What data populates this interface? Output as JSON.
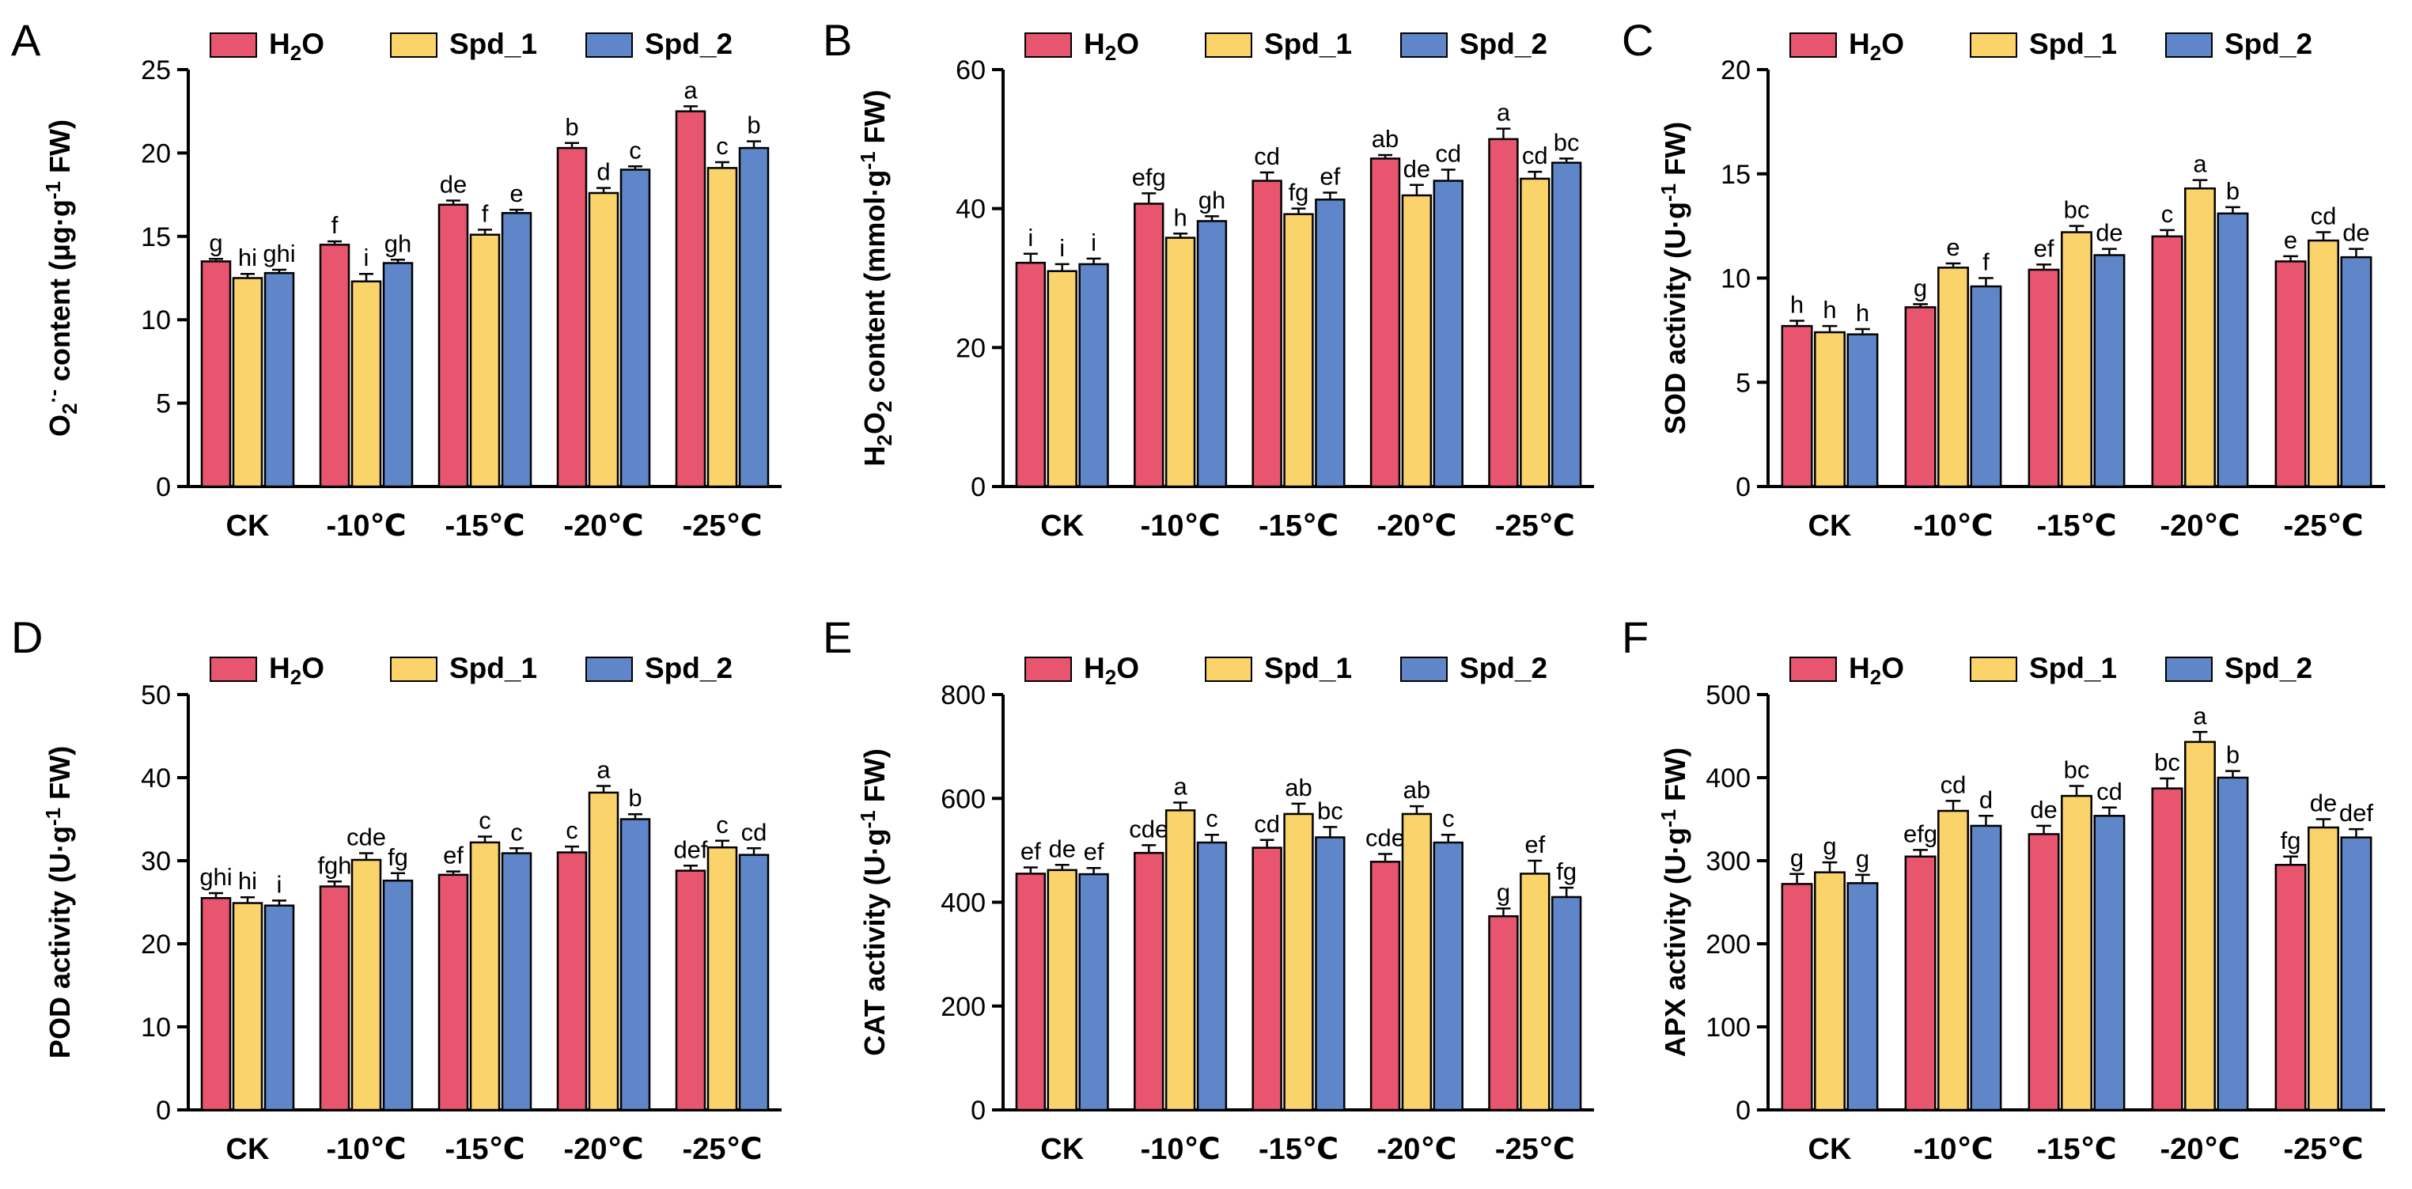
{
  "colors": {
    "H2O": "#E8556F",
    "Spd_1": "#FBD36B",
    "Spd_2": "#5E86C8",
    "axis": "#000000"
  },
  "chart_data": [
    {
      "type": "bar",
      "panel": "A",
      "ylabel": "O2·⁻ content (μg·g⁻¹ FW)",
      "ylim": [
        0,
        25
      ],
      "yticks": [
        "0",
        "5",
        "10",
        "15",
        "20",
        "25"
      ],
      "categories": [
        "CK",
        "-10℃",
        "-15℃",
        "-20℃",
        "-25℃"
      ],
      "legend": [
        "H2O",
        "Spd_1",
        "Spd_2"
      ],
      "series": [
        {
          "name": "H2O",
          "values": [
            13.5,
            14.5,
            16.9,
            20.3,
            22.5
          ],
          "errors": [
            0.15,
            0.2,
            0.25,
            0.3,
            0.3
          ],
          "labels": [
            "g",
            "f",
            "de",
            "b",
            "a"
          ]
        },
        {
          "name": "Spd_1",
          "values": [
            12.5,
            12.3,
            15.1,
            17.6,
            19.1
          ],
          "errors": [
            0.25,
            0.45,
            0.3,
            0.3,
            0.35
          ],
          "labels": [
            "hi",
            "i",
            "f",
            "d",
            "c"
          ]
        },
        {
          "name": "Spd_2",
          "values": [
            12.8,
            13.4,
            16.4,
            19.0,
            20.3
          ],
          "errors": [
            0.2,
            0.2,
            0.2,
            0.2,
            0.4
          ],
          "labels": [
            "ghi",
            "gh",
            "e",
            "c",
            "b"
          ]
        }
      ]
    },
    {
      "type": "bar",
      "panel": "B",
      "ylabel": "H2O2 content (mmol·g⁻¹ FW)",
      "ylim": [
        0,
        60
      ],
      "yticks": [
        "0",
        "20",
        "40",
        "60"
      ],
      "categories": [
        "CK",
        "-10℃",
        "-15℃",
        "-20℃",
        "-25℃"
      ],
      "legend": [
        "H2O",
        "Spd_1",
        "Spd_2"
      ],
      "series": [
        {
          "name": "H2O",
          "values": [
            32.2,
            40.7,
            44.0,
            47.2,
            50.0
          ],
          "errors": [
            1.3,
            1.5,
            1.2,
            0.5,
            1.5
          ],
          "labels": [
            "i",
            "efg",
            "cd",
            "ab",
            "a"
          ]
        },
        {
          "name": "Spd_1",
          "values": [
            31.0,
            35.8,
            39.2,
            41.9,
            44.3
          ],
          "errors": [
            1.0,
            0.6,
            0.8,
            1.5,
            1.0
          ],
          "labels": [
            "i",
            "h",
            "fg",
            "de",
            "cd"
          ]
        },
        {
          "name": "Spd_2",
          "values": [
            32.0,
            38.2,
            41.3,
            44.0,
            46.6
          ],
          "errors": [
            0.8,
            0.7,
            1.0,
            1.6,
            0.6
          ],
          "labels": [
            "i",
            "gh",
            "ef",
            "cd",
            "bc"
          ]
        }
      ]
    },
    {
      "type": "bar",
      "panel": "C",
      "ylabel": "SOD activity (U·g⁻¹ FW)",
      "ylim": [
        0,
        20
      ],
      "yticks": [
        "0",
        "5",
        "10",
        "15",
        "20"
      ],
      "categories": [
        "CK",
        "-10℃",
        "-15℃",
        "-20℃",
        "-25℃"
      ],
      "legend": [
        "H2O",
        "Spd_1",
        "Spd_2"
      ],
      "series": [
        {
          "name": "H2O",
          "values": [
            7.7,
            8.6,
            10.4,
            12.0,
            10.8
          ],
          "errors": [
            0.25,
            0.15,
            0.25,
            0.3,
            0.25
          ],
          "labels": [
            "h",
            "g",
            "ef",
            "c",
            "e"
          ]
        },
        {
          "name": "Spd_1",
          "values": [
            7.4,
            10.5,
            12.2,
            14.3,
            11.8
          ],
          "errors": [
            0.3,
            0.2,
            0.3,
            0.4,
            0.4
          ],
          "labels": [
            "h",
            "e",
            "bc",
            "a",
            "cd"
          ]
        },
        {
          "name": "Spd_2",
          "values": [
            7.3,
            9.6,
            11.1,
            13.1,
            11.0
          ],
          "errors": [
            0.25,
            0.4,
            0.3,
            0.3,
            0.4
          ],
          "labels": [
            "h",
            "f",
            "de",
            "b",
            "de"
          ]
        }
      ]
    },
    {
      "type": "bar",
      "panel": "D",
      "ylabel": "POD activity (U·g⁻¹ FW)",
      "ylim": [
        0,
        50
      ],
      "yticks": [
        "0",
        "10",
        "20",
        "30",
        "40",
        "50"
      ],
      "categories": [
        "CK",
        "-10℃",
        "-15℃",
        "-20℃",
        "-25℃"
      ],
      "legend": [
        "H2O",
        "Spd_1",
        "Spd_2"
      ],
      "series": [
        {
          "name": "H2O",
          "values": [
            25.5,
            26.9,
            28.3,
            31.0,
            28.8
          ],
          "errors": [
            0.6,
            0.6,
            0.4,
            0.7,
            0.6
          ],
          "labels": [
            "ghi",
            "fgh",
            "ef",
            "c",
            "def"
          ]
        },
        {
          "name": "Spd_1",
          "values": [
            24.9,
            30.1,
            32.2,
            38.2,
            31.6
          ],
          "errors": [
            0.7,
            0.8,
            0.7,
            0.8,
            0.8
          ],
          "labels": [
            "hi",
            "cde",
            "c",
            "a",
            "c"
          ]
        },
        {
          "name": "Spd_2",
          "values": [
            24.6,
            27.6,
            30.9,
            35.0,
            30.7
          ],
          "errors": [
            0.6,
            0.9,
            0.6,
            0.6,
            0.8
          ],
          "labels": [
            "i",
            "fg",
            "c",
            "b",
            "cd"
          ]
        }
      ]
    },
    {
      "type": "bar",
      "panel": "E",
      "ylabel": "CAT activity (U·g⁻¹ FW)",
      "ylim": [
        0,
        800
      ],
      "yticks": [
        "0",
        "200",
        "400",
        "600",
        "800"
      ],
      "categories": [
        "CK",
        "-10℃",
        "-15℃",
        "-20℃",
        "-25℃"
      ],
      "legend": [
        "H2O",
        "Spd_1",
        "Spd_2"
      ],
      "series": [
        {
          "name": "H2O",
          "values": [
            455,
            495,
            505,
            478,
            373
          ],
          "errors": [
            12,
            15,
            15,
            15,
            15
          ],
          "labels": [
            "ef",
            "cde",
            "cd",
            "cde",
            "g"
          ]
        },
        {
          "name": "Spd_1",
          "values": [
            462,
            577,
            570,
            570,
            455
          ],
          "errors": [
            10,
            15,
            20,
            15,
            25
          ],
          "labels": [
            "de",
            "a",
            "ab",
            "ab",
            "ef"
          ]
        },
        {
          "name": "Spd_2",
          "values": [
            454,
            515,
            525,
            515,
            410
          ],
          "errors": [
            12,
            15,
            20,
            15,
            18
          ],
          "labels": [
            "ef",
            "c",
            "bc",
            "c",
            "fg"
          ]
        }
      ]
    },
    {
      "type": "bar",
      "panel": "F",
      "ylabel": "APX activity (U·g⁻¹ FW)",
      "ylim": [
        0,
        500
      ],
      "yticks": [
        "0",
        "100",
        "200",
        "300",
        "400",
        "500"
      ],
      "categories": [
        "CK",
        "-10℃",
        "-15℃",
        "-20℃",
        "-25℃"
      ],
      "legend": [
        "H2O",
        "Spd_1",
        "Spd_2"
      ],
      "series": [
        {
          "name": "H2O",
          "values": [
            272,
            305,
            332,
            387,
            295
          ],
          "errors": [
            12,
            8,
            10,
            12,
            10
          ],
          "labels": [
            "g",
            "efg",
            "de",
            "bc",
            "fg"
          ]
        },
        {
          "name": "Spd_1",
          "values": [
            286,
            360,
            378,
            443,
            340
          ],
          "errors": [
            12,
            12,
            12,
            12,
            10
          ],
          "labels": [
            "g",
            "cd",
            "bc",
            "a",
            "de"
          ]
        },
        {
          "name": "Spd_2",
          "values": [
            273,
            342,
            354,
            400,
            328
          ],
          "errors": [
            10,
            12,
            10,
            8,
            10
          ],
          "labels": [
            "g",
            "d",
            "cd",
            "b",
            "def"
          ]
        }
      ]
    }
  ]
}
